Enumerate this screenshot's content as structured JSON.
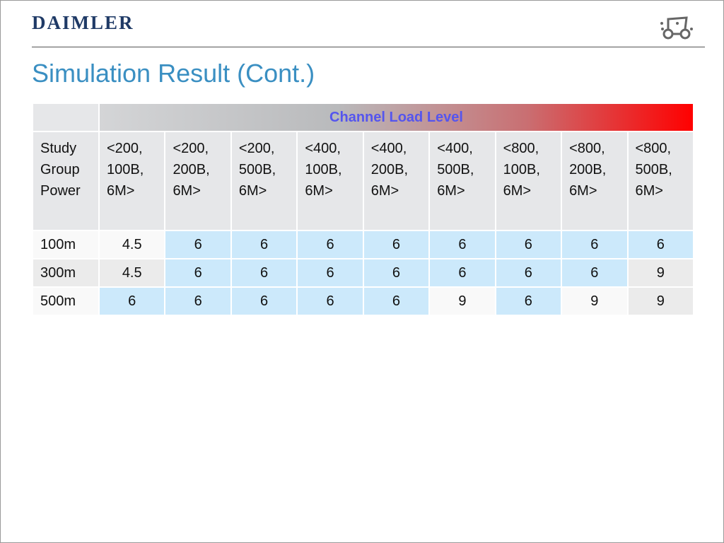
{
  "header": {
    "brand": "DAIMLER"
  },
  "title": "Simulation Result (Cont.)",
  "table": {
    "group_header": "Channel Load Level",
    "columns": [
      "Study Group Power",
      "<200, 100B, 6M>",
      "<200, 200B, 6M>",
      "<200, 500B, 6M>",
      "<400, 100B, 6M>",
      "<400, 200B, 6M>",
      "<400, 500B, 6M>",
      "<800, 100B, 6M>",
      "<800, 200B, 6M>",
      "<800, 500B, 6M>"
    ],
    "rows": [
      [
        "100m",
        4.5,
        6,
        6,
        6,
        6,
        6,
        6,
        6,
        6
      ],
      [
        "300m",
        4.5,
        6,
        6,
        6,
        6,
        6,
        6,
        6,
        9
      ],
      [
        "500m",
        6,
        6,
        6,
        6,
        6,
        9,
        6,
        9,
        9
      ]
    ]
  }
}
